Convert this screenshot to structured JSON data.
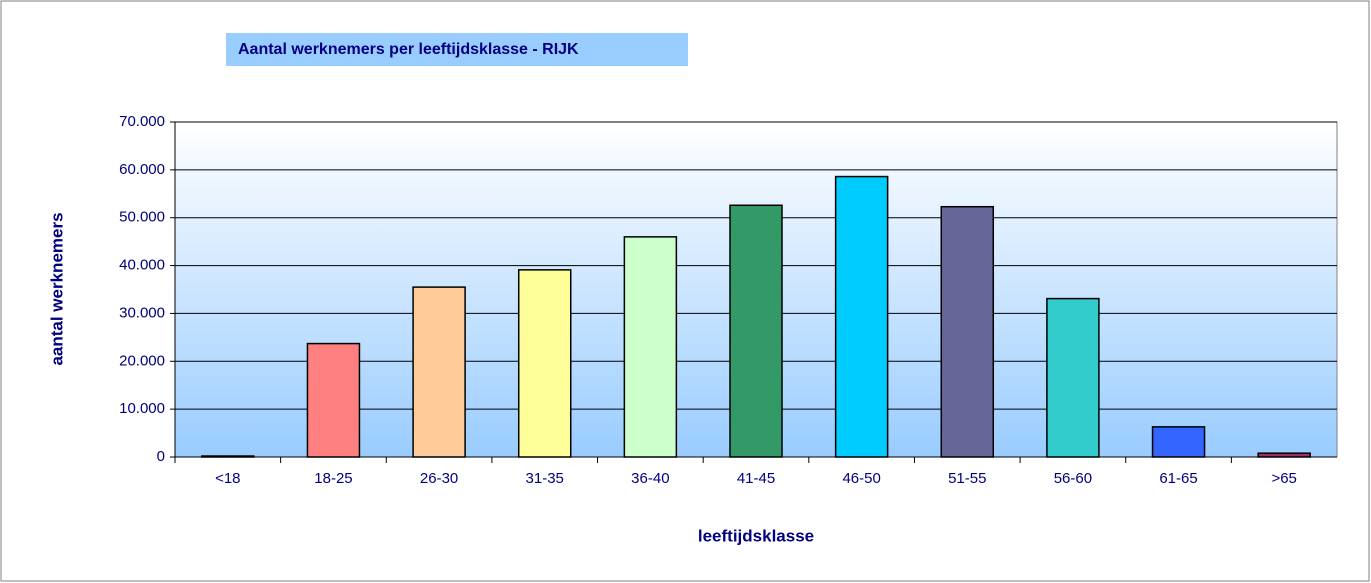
{
  "chart_data": {
    "type": "bar",
    "title": "Aantal werknemers per leeftijdsklasse - RIJK",
    "x_label": "leeftijdsklasse",
    "y_label": "aantal werknemers",
    "categories": [
      "<18",
      "18-25",
      "26-30",
      "31-35",
      "36-40",
      "41-45",
      "46-50",
      "51-55",
      "56-60",
      "61-65",
      ">65"
    ],
    "values": [
      200,
      23700,
      35500,
      39100,
      46000,
      52600,
      58600,
      52300,
      33100,
      6300,
      800
    ],
    "colors": [
      "#993366",
      "#ff8080",
      "#ffcc99",
      "#ffff99",
      "#ccffcc",
      "#339966",
      "#00ccff",
      "#666699",
      "#33cccc",
      "#3366ff",
      "#993366"
    ],
    "ylim": [
      0,
      70000
    ],
    "yticks": [
      0,
      {
        "value": 10000,
        "label": "10.000"
      },
      {
        "value": 20000,
        "label": "20.000"
      },
      {
        "value": 30000,
        "label": "30.000"
      },
      {
        "value": 40000,
        "label": "40.000"
      },
      {
        "value": 50000,
        "label": "50.000"
      },
      {
        "value": 60000,
        "label": "60.000"
      },
      {
        "value": 70000,
        "label": "70.000"
      }
    ],
    "grid": true
  }
}
